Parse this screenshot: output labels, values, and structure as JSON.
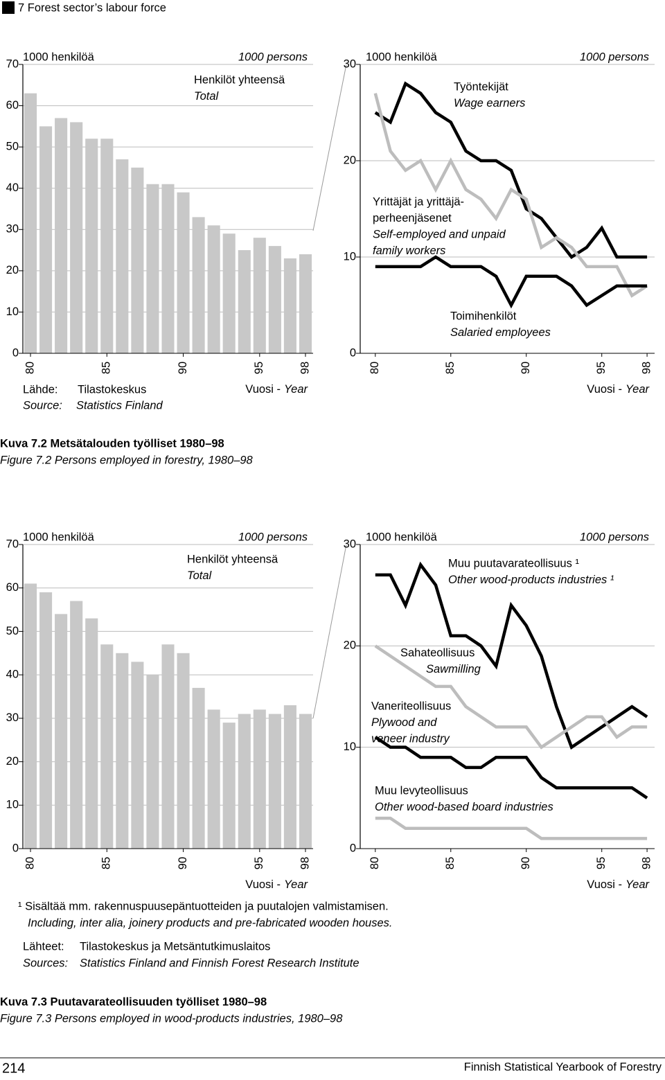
{
  "header": {
    "title": "7 Forest sector’s labour force"
  },
  "chart_data": [
    {
      "type": "bar",
      "unit_fi": "1000 henkilöä",
      "unit_en": "1000 persons",
      "x": [
        80,
        81,
        82,
        83,
        84,
        85,
        86,
        87,
        88,
        89,
        90,
        91,
        92,
        93,
        94,
        95,
        96,
        97,
        98
      ],
      "xlim": [
        79.5,
        98.5
      ],
      "xticks": [
        80,
        85,
        90,
        95,
        98
      ],
      "ylim": [
        0,
        70
      ],
      "yticks": [
        0,
        10,
        20,
        30,
        40,
        50,
        60,
        70
      ],
      "grid": true,
      "x_label": {
        "fi": "Vuosi -",
        "en": "Year"
      },
      "series": [
        {
          "name": [
            "Henkilöt yhteensä"
          ],
          "name_en": [
            "Total"
          ],
          "color": "#c8c8c8",
          "values": [
            63,
            55,
            57,
            56,
            52,
            52,
            47,
            45,
            41,
            41,
            39,
            33,
            31,
            29,
            25,
            28,
            26,
            23,
            24
          ]
        }
      ]
    },
    {
      "type": "line",
      "unit_fi": "1000 henkilöä",
      "unit_en": "1000 persons",
      "x": [
        80,
        81,
        82,
        83,
        84,
        85,
        86,
        87,
        88,
        89,
        90,
        91,
        92,
        93,
        94,
        95,
        96,
        97,
        98
      ],
      "xlim": [
        79,
        98.5
      ],
      "xticks": [
        80,
        85,
        90,
        95,
        98
      ],
      "ylim": [
        0,
        30
      ],
      "yticks": [
        0,
        10,
        20,
        30
      ],
      "grid": true,
      "x_label": {
        "fi": "Vuosi -",
        "en": "Year"
      },
      "series": [
        {
          "name": [
            "Työntekijät"
          ],
          "name_en": [
            "Wage earners"
          ],
          "color": "#000000",
          "values": [
            25,
            24,
            28,
            27,
            25,
            24,
            21,
            20,
            20,
            19,
            15,
            14,
            12,
            10,
            11,
            13,
            10,
            10,
            10
          ]
        },
        {
          "name": [
            "Yrittäjät ja yrittäjä-",
            "perheenjäsenet"
          ],
          "name_en": [
            "Self-employed and unpaid",
            "family workers"
          ],
          "color": "#bdbdbd",
          "values": [
            27,
            21,
            19,
            20,
            17,
            20,
            17,
            16,
            14,
            17,
            16,
            11,
            12,
            11,
            9,
            9,
            9,
            6,
            7
          ]
        },
        {
          "name": [
            "Toimihenkilöt"
          ],
          "name_en": [
            "Salaried employees"
          ],
          "color": "#000000",
          "values": [
            9,
            9,
            9,
            9,
            10,
            9,
            9,
            9,
            8,
            5,
            8,
            8,
            8,
            7,
            5,
            6,
            7,
            7,
            7
          ]
        }
      ]
    },
    {
      "type": "bar",
      "unit_fi": "1000 henkilöä",
      "unit_en": "1000 persons",
      "x": [
        80,
        81,
        82,
        83,
        84,
        85,
        86,
        87,
        88,
        89,
        90,
        91,
        92,
        93,
        94,
        95,
        96,
        97,
        98
      ],
      "xlim": [
        79.5,
        98.5
      ],
      "xticks": [
        80,
        85,
        90,
        95,
        98
      ],
      "ylim": [
        0,
        70
      ],
      "yticks": [
        0,
        10,
        20,
        30,
        40,
        50,
        60,
        70
      ],
      "grid": true,
      "x_label": {
        "fi": "Vuosi -",
        "en": "Year"
      },
      "series": [
        {
          "name": [
            "Henkilöt yhteensä"
          ],
          "name_en": [
            "Total"
          ],
          "color": "#c8c8c8",
          "values": [
            61,
            59,
            54,
            57,
            53,
            47,
            45,
            43,
            40,
            47,
            45,
            37,
            32,
            29,
            31,
            32,
            31,
            33,
            31
          ]
        }
      ]
    },
    {
      "type": "line",
      "unit_fi": "1000 henkilöä",
      "unit_en": "1000 persons",
      "x": [
        80,
        81,
        82,
        83,
        84,
        85,
        86,
        87,
        88,
        89,
        90,
        91,
        92,
        93,
        94,
        95,
        96,
        97,
        98
      ],
      "xlim": [
        79,
        98.5
      ],
      "xticks": [
        80,
        85,
        90,
        95,
        98
      ],
      "ylim": [
        0,
        30
      ],
      "yticks": [
        0,
        10,
        20,
        30
      ],
      "grid": true,
      "x_label": {
        "fi": "Vuosi -",
        "en": "Year"
      },
      "series": [
        {
          "name": [
            "Muu puutavarateollisuus ¹"
          ],
          "name_en": [
            "Other wood-products industries ¹"
          ],
          "color": "#000000",
          "values": [
            27,
            27,
            24,
            28,
            26,
            21,
            21,
            20,
            18,
            24,
            22,
            19,
            14,
            10,
            11,
            12,
            13,
            14,
            13
          ]
        },
        {
          "name": [
            "Sahateollisuus"
          ],
          "name_en": [
            "Sawmilling"
          ],
          "color": "#bdbdbd",
          "values": [
            20,
            19,
            18,
            17,
            16,
            16,
            14,
            13,
            12,
            12,
            12,
            10,
            11,
            12,
            13,
            13,
            11,
            12,
            12
          ]
        },
        {
          "name": [
            "Vaneriteollisuus"
          ],
          "name_en": [
            "Plywood and",
            "veneer industry"
          ],
          "color": "#000000",
          "values": [
            11,
            10,
            10,
            9,
            9,
            9,
            8,
            8,
            9,
            9,
            9,
            7,
            6,
            6,
            6,
            6,
            6,
            6,
            5
          ]
        },
        {
          "name": [
            "Muu levyteollisuus"
          ],
          "name_en": [
            "Other wood-based board industries"
          ],
          "color": "#bdbdbd",
          "values": [
            3,
            3,
            2,
            2,
            2,
            2,
            2,
            2,
            2,
            2,
            2,
            1,
            1,
            1,
            1,
            1,
            1,
            1,
            1
          ]
        }
      ]
    }
  ],
  "figure1": {
    "source_label_fi": "Lähde:",
    "source_fi": "Tilastokeskus",
    "source_label_en": "Source:",
    "source_en": "Statistics Finland",
    "caption_fi": "Kuva 7.2 Metsätalouden työlliset 1980–98",
    "caption_en": "Figure 7.2 Persons employed in forestry, 1980–98"
  },
  "figure2": {
    "footnote_fi": "¹ Sisältää mm. rakennuspuusepäntuotteiden ja puutalojen valmistamisen.",
    "footnote_en": "Including, inter alia, joinery products and pre-fabricated wooden houses.",
    "source_label_fi": "Lähteet:",
    "source_fi": "Tilastokeskus ja Metsäntutkimuslaitos",
    "source_label_en": "Sources:",
    "source_en": "Statistics Finland and Finnish Forest Research Institute",
    "caption_fi": "Kuva 7.3 Puutavarateollisuuden työlliset 1980–98",
    "caption_en": "Figure 7.3 Persons employed in wood-products industries, 1980–98"
  },
  "footer": {
    "page": "214",
    "title": "Finnish Statistical Yearbook of Forestry"
  }
}
